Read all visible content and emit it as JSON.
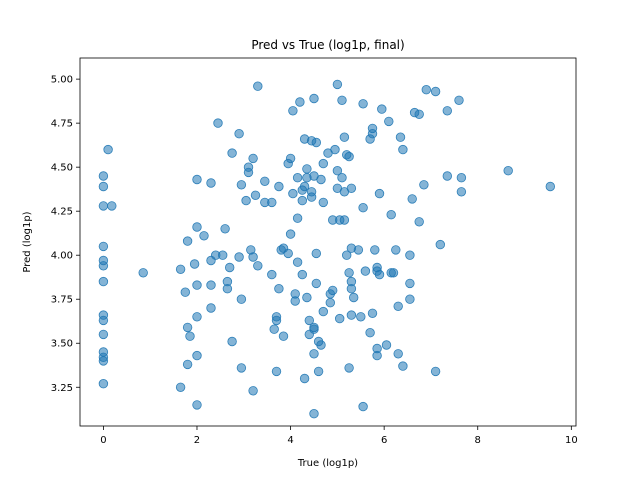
{
  "chart_data": {
    "type": "scatter",
    "title": "Pred vs True (log1p, final)",
    "xlabel": "True (log1p)",
    "ylabel": "Pred (log1p)",
    "xlim": [
      -0.5,
      10.1
    ],
    "ylim": [
      3.03,
      5.12
    ],
    "xticks": [
      0,
      2,
      4,
      6,
      8,
      10
    ],
    "yticks": [
      3.25,
      3.5,
      3.75,
      4.0,
      4.25,
      4.5,
      4.75,
      5.0
    ],
    "xtick_labels": [
      "0",
      "2",
      "4",
      "6",
      "8",
      "10"
    ],
    "ytick_labels": [
      "3.25",
      "3.50",
      "3.75",
      "4.00",
      "4.25",
      "4.50",
      "4.75",
      "5.00"
    ],
    "grid": false,
    "legend": null,
    "marker_color": "#1f77b4",
    "marker_alpha": 0.55,
    "points": [
      [
        0.0,
        4.45
      ],
      [
        0.0,
        4.39
      ],
      [
        0.0,
        4.28
      ],
      [
        0.1,
        4.6
      ],
      [
        0.18,
        4.28
      ],
      [
        0.0,
        4.05
      ],
      [
        0.0,
        3.97
      ],
      [
        0.0,
        3.94
      ],
      [
        0.0,
        3.85
      ],
      [
        0.0,
        3.66
      ],
      [
        0.0,
        3.63
      ],
      [
        0.0,
        3.55
      ],
      [
        0.0,
        3.45
      ],
      [
        0.0,
        3.42
      ],
      [
        0.0,
        3.4
      ],
      [
        0.0,
        3.27
      ],
      [
        0.85,
        3.9
      ],
      [
        1.65,
        3.92
      ],
      [
        1.75,
        3.79
      ],
      [
        1.8,
        4.08
      ],
      [
        1.8,
        3.59
      ],
      [
        1.85,
        3.54
      ],
      [
        1.8,
        3.38
      ],
      [
        1.65,
        3.25
      ],
      [
        1.95,
        3.95
      ],
      [
        2.0,
        3.43
      ],
      [
        2.0,
        3.15
      ],
      [
        2.0,
        4.43
      ],
      [
        2.0,
        4.16
      ],
      [
        2.0,
        3.83
      ],
      [
        2.0,
        3.65
      ],
      [
        2.15,
        4.11
      ],
      [
        2.3,
        4.41
      ],
      [
        2.3,
        3.97
      ],
      [
        2.3,
        3.83
      ],
      [
        2.3,
        3.7
      ],
      [
        2.45,
        4.75
      ],
      [
        2.4,
        4.0
      ],
      [
        2.55,
        4.0
      ],
      [
        2.6,
        4.15
      ],
      [
        2.65,
        3.85
      ],
      [
        2.65,
        3.81
      ],
      [
        2.7,
        3.93
      ],
      [
        2.75,
        4.58
      ],
      [
        2.75,
        3.51
      ],
      [
        2.9,
        4.69
      ],
      [
        2.9,
        3.99
      ],
      [
        2.95,
        4.4
      ],
      [
        2.95,
        3.75
      ],
      [
        2.95,
        3.36
      ],
      [
        3.05,
        4.31
      ],
      [
        3.1,
        4.5
      ],
      [
        3.1,
        4.47
      ],
      [
        3.15,
        4.03
      ],
      [
        3.2,
        3.99
      ],
      [
        3.2,
        3.23
      ],
      [
        3.2,
        4.55
      ],
      [
        3.25,
        4.34
      ],
      [
        3.3,
        4.96
      ],
      [
        3.3,
        3.94
      ],
      [
        3.45,
        4.42
      ],
      [
        3.45,
        4.3
      ],
      [
        3.6,
        4.3
      ],
      [
        3.6,
        3.89
      ],
      [
        3.65,
        3.58
      ],
      [
        3.7,
        3.65
      ],
      [
        3.7,
        3.63
      ],
      [
        3.75,
        4.39
      ],
      [
        3.75,
        3.81
      ],
      [
        3.8,
        4.03
      ],
      [
        3.85,
        4.04
      ],
      [
        3.85,
        3.54
      ],
      [
        3.7,
        3.34
      ],
      [
        3.95,
        4.52
      ],
      [
        3.95,
        4.01
      ],
      [
        4.0,
        4.55
      ],
      [
        4.0,
        4.12
      ],
      [
        4.05,
        4.82
      ],
      [
        4.05,
        4.35
      ],
      [
        4.1,
        3.78
      ],
      [
        4.1,
        3.74
      ],
      [
        4.15,
        4.44
      ],
      [
        4.15,
        4.21
      ],
      [
        4.15,
        3.96
      ],
      [
        4.2,
        4.87
      ],
      [
        4.25,
        4.37
      ],
      [
        4.25,
        4.31
      ],
      [
        4.25,
        3.89
      ],
      [
        4.3,
        4.66
      ],
      [
        4.3,
        4.39
      ],
      [
        4.3,
        3.3
      ],
      [
        4.35,
        4.49
      ],
      [
        4.35,
        4.44
      ],
      [
        4.35,
        3.76
      ],
      [
        4.4,
        3.55
      ],
      [
        4.4,
        3.63
      ],
      [
        4.45,
        4.65
      ],
      [
        4.45,
        4.36
      ],
      [
        4.45,
        4.33
      ],
      [
        4.5,
        4.89
      ],
      [
        4.5,
        4.45
      ],
      [
        4.5,
        3.59
      ],
      [
        4.5,
        3.58
      ],
      [
        4.5,
        3.44
      ],
      [
        4.5,
        3.1
      ],
      [
        4.55,
        4.64
      ],
      [
        4.55,
        4.01
      ],
      [
        4.55,
        3.84
      ],
      [
        4.6,
        3.51
      ],
      [
        4.6,
        3.34
      ],
      [
        4.65,
        4.43
      ],
      [
        4.65,
        3.49
      ],
      [
        4.7,
        4.52
      ],
      [
        4.7,
        4.3
      ],
      [
        4.7,
        3.68
      ],
      [
        4.8,
        4.58
      ],
      [
        4.85,
        3.78
      ],
      [
        4.85,
        3.73
      ],
      [
        4.9,
        4.2
      ],
      [
        4.9,
        3.8
      ],
      [
        4.95,
        4.6
      ],
      [
        5.0,
        4.97
      ],
      [
        5.0,
        4.48
      ],
      [
        5.0,
        4.38
      ],
      [
        5.05,
        4.2
      ],
      [
        5.05,
        3.64
      ],
      [
        5.1,
        4.88
      ],
      [
        5.1,
        4.44
      ],
      [
        5.15,
        4.67
      ],
      [
        5.15,
        4.36
      ],
      [
        5.15,
        4.2
      ],
      [
        5.2,
        4.57
      ],
      [
        5.2,
        4.0
      ],
      [
        5.25,
        4.56
      ],
      [
        5.25,
        3.9
      ],
      [
        5.25,
        3.36
      ],
      [
        5.3,
        4.38
      ],
      [
        5.3,
        4.04
      ],
      [
        5.3,
        3.85
      ],
      [
        5.3,
        3.81
      ],
      [
        5.3,
        3.66
      ],
      [
        5.35,
        3.76
      ],
      [
        5.45,
        4.03
      ],
      [
        5.5,
        3.65
      ],
      [
        5.55,
        4.86
      ],
      [
        5.55,
        4.27
      ],
      [
        5.55,
        3.14
      ],
      [
        5.6,
        3.91
      ],
      [
        5.7,
        4.66
      ],
      [
        5.7,
        3.56
      ],
      [
        5.75,
        4.72
      ],
      [
        5.75,
        4.69
      ],
      [
        5.75,
        3.67
      ],
      [
        5.8,
        4.03
      ],
      [
        5.85,
        3.93
      ],
      [
        5.85,
        3.91
      ],
      [
        5.85,
        3.47
      ],
      [
        5.85,
        3.43
      ],
      [
        5.9,
        4.35
      ],
      [
        5.9,
        3.89
      ],
      [
        5.95,
        4.83
      ],
      [
        6.05,
        3.49
      ],
      [
        6.1,
        4.76
      ],
      [
        6.15,
        4.23
      ],
      [
        6.15,
        3.9
      ],
      [
        6.2,
        3.9
      ],
      [
        6.25,
        4.03
      ],
      [
        6.3,
        3.71
      ],
      [
        6.3,
        3.44
      ],
      [
        6.35,
        4.67
      ],
      [
        6.4,
        4.6
      ],
      [
        6.4,
        3.37
      ],
      [
        6.55,
        4.0
      ],
      [
        6.55,
        3.84
      ],
      [
        6.55,
        3.75
      ],
      [
        6.6,
        4.32
      ],
      [
        6.65,
        4.81
      ],
      [
        6.75,
        4.8
      ],
      [
        6.75,
        4.19
      ],
      [
        6.85,
        4.4
      ],
      [
        6.9,
        4.94
      ],
      [
        7.1,
        4.93
      ],
      [
        7.1,
        3.34
      ],
      [
        7.2,
        4.06
      ],
      [
        7.35,
        4.82
      ],
      [
        7.35,
        4.45
      ],
      [
        7.6,
        4.88
      ],
      [
        7.65,
        4.44
      ],
      [
        7.65,
        4.36
      ],
      [
        8.65,
        4.48
      ],
      [
        9.55,
        4.39
      ]
    ]
  }
}
